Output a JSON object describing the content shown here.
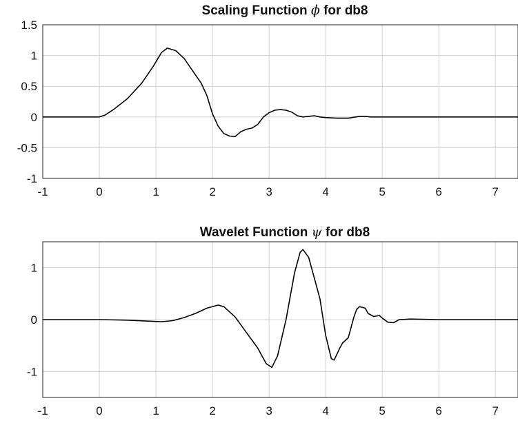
{
  "chart_data": [
    {
      "type": "line",
      "title_prefix": "Scaling Function ",
      "title_symbol": "ϕ",
      "title_suffix": " for db8",
      "xlabel": "",
      "ylabel": "",
      "xlim": [
        -1,
        7.4
      ],
      "ylim": [
        -1,
        1.5
      ],
      "xticks": [
        -1,
        0,
        1,
        2,
        3,
        4,
        5,
        6,
        7
      ],
      "yticks": [
        -1,
        -0.5,
        0,
        0.5,
        1,
        1.5
      ],
      "ytick_labels": [
        "-1",
        "-0.5",
        "0",
        "0.5",
        "1",
        "1.5"
      ],
      "grid": true,
      "series": [
        {
          "color": "#000000",
          "x": [
            -1,
            0,
            0.1,
            0.25,
            0.5,
            0.75,
            0.95,
            1.1,
            1.2,
            1.35,
            1.5,
            1.65,
            1.8,
            1.9,
            2.0,
            2.1,
            2.2,
            2.3,
            2.4,
            2.5,
            2.6,
            2.7,
            2.8,
            2.9,
            3.0,
            3.1,
            3.2,
            3.3,
            3.4,
            3.5,
            3.6,
            3.7,
            3.8,
            3.9,
            4.0,
            4.2,
            4.4,
            4.6,
            4.7,
            4.8,
            5.0,
            5.2,
            5.5,
            7.4
          ],
          "y": [
            0,
            0,
            0.03,
            0.12,
            0.3,
            0.55,
            0.82,
            1.05,
            1.12,
            1.08,
            0.95,
            0.75,
            0.55,
            0.35,
            0.05,
            -0.15,
            -0.27,
            -0.31,
            -0.32,
            -0.24,
            -0.2,
            -0.18,
            -0.12,
            0.0,
            0.07,
            0.11,
            0.12,
            0.11,
            0.08,
            0.02,
            0.0,
            0.01,
            0.02,
            0.0,
            -0.01,
            -0.02,
            -0.02,
            0.01,
            0.01,
            0.0,
            0.0,
            0.0,
            0.0,
            0.0
          ]
        }
      ]
    },
    {
      "type": "line",
      "title_prefix": "Wavelet Function ",
      "title_symbol": "ψ",
      "title_suffix": " for db8",
      "xlabel": "",
      "ylabel": "",
      "xlim": [
        -1,
        7.4
      ],
      "ylim": [
        -1.5,
        1.5
      ],
      "xticks": [
        -1,
        0,
        1,
        2,
        3,
        4,
        5,
        6,
        7
      ],
      "yticks": [
        -1,
        0,
        1
      ],
      "ytick_labels": [
        "-1",
        "0",
        "1"
      ],
      "grid": true,
      "series": [
        {
          "color": "#000000",
          "x": [
            -1,
            -0.5,
            0,
            0.5,
            0.9,
            1.1,
            1.3,
            1.5,
            1.7,
            1.9,
            2.1,
            2.2,
            2.4,
            2.6,
            2.8,
            2.95,
            3.05,
            3.15,
            3.3,
            3.45,
            3.55,
            3.6,
            3.7,
            3.8,
            3.9,
            4.0,
            4.1,
            4.15,
            4.25,
            4.3,
            4.4,
            4.5,
            4.55,
            4.6,
            4.7,
            4.75,
            4.85,
            4.95,
            5.0,
            5.1,
            5.2,
            5.3,
            5.5,
            6.0,
            7.4
          ],
          "y": [
            0,
            0,
            0,
            -0.01,
            -0.03,
            -0.04,
            -0.02,
            0.04,
            0.12,
            0.22,
            0.28,
            0.25,
            0.05,
            -0.25,
            -0.55,
            -0.85,
            -0.92,
            -0.7,
            0.0,
            0.9,
            1.3,
            1.35,
            1.2,
            0.8,
            0.4,
            -0.3,
            -0.75,
            -0.78,
            -0.55,
            -0.45,
            -0.35,
            0.05,
            0.2,
            0.25,
            0.22,
            0.12,
            0.06,
            0.08,
            0.03,
            -0.05,
            -0.06,
            0.0,
            0.01,
            0.0,
            0.0
          ]
        }
      ]
    }
  ]
}
